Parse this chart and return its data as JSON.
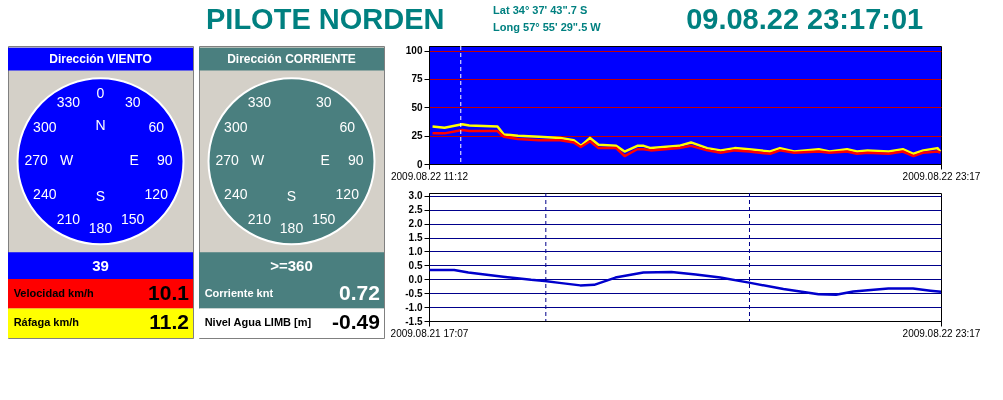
{
  "chart_data": [
    {
      "type": "other",
      "title": "PILOTE NORDEN",
      "annotations": [
        "Lat 34° 37' 43\".7 S",
        "Long 57° 55'  29\".5 W",
        "09.08.22 23:17:01"
      ]
    },
    {
      "type": "other",
      "title": "Dirección VIENTO",
      "color": "#0000ff",
      "categories": [
        "0",
        "30",
        "60",
        "90",
        "120",
        "150",
        "180",
        "210",
        "240",
        "270",
        "300",
        "330",
        "N",
        "E",
        "S",
        "W"
      ],
      "annotations": [
        "39",
        "Velocidad km/h",
        "10.1",
        "Ráfaga km/h",
        "11.2"
      ]
    },
    {
      "type": "other",
      "title": "Dirección CORRIENTE",
      "color": "#4a7f7f",
      "categories": [
        null,
        "30",
        "60",
        "90",
        "120",
        "150",
        "180",
        "210",
        "240",
        "270",
        "300",
        "330",
        null,
        "E",
        "S",
        "W"
      ],
      "annotations": [
        ">=360",
        "Corriente knt",
        "0.72",
        "Nivel Agua LIMB [m]",
        "-0.49"
      ]
    },
    {
      "type": "line",
      "x": [
        "2009-08-22T11:17",
        "2009-08-22T11:34",
        "2009-08-22T11:59",
        "2009-08-22T12:09",
        "2009-08-22T12:49",
        "2009-08-22T12:58",
        "2009-08-22T13:18",
        "2009-08-22T13:48",
        "2009-08-22T14:18",
        "2009-08-22T14:37",
        "2009-08-22T14:47",
        "2009-08-22T15:00",
        "2009-08-22T15:12",
        "2009-08-22T15:37",
        "2009-08-22T15:49",
        "2009-08-22T16:07",
        "2009-08-22T16:16",
        "2009-08-22T16:26",
        "2009-08-22T17:06",
        "2009-08-22T17:23",
        "2009-08-22T17:46",
        "2009-08-22T18:05",
        "2009-08-22T18:25",
        "2009-08-22T18:45",
        "2009-08-22T19:15",
        "2009-08-22T19:29",
        "2009-08-22T19:49",
        "2009-08-22T20:24",
        "2009-08-22T20:39",
        "2009-08-22T21:04",
        "2009-08-22T21:18",
        "2009-08-22T21:33",
        "2009-08-22T22:03",
        "2009-08-22T22:23",
        "2009-08-22T22:38",
        "2009-08-22T22:52",
        "2009-08-22T23:12",
        "2009-08-22T23:16"
      ],
      "series": [
        {
          "color": "#ffff00",
          "values": [
            33,
            32,
            35,
            34,
            33,
            26,
            25,
            24,
            23,
            21,
            16,
            23,
            17,
            16,
            11,
            16,
            16,
            14,
            16,
            19,
            14,
            12,
            14,
            13,
            11,
            14,
            11,
            13,
            11,
            13,
            11,
            12,
            11,
            13,
            9,
            12,
            14,
            11
          ]
        },
        {
          "color": "#ff0000",
          "values": [
            27,
            27,
            30,
            29,
            29,
            24,
            22,
            21,
            21,
            19,
            15,
            20,
            14,
            14,
            7,
            13,
            13,
            12,
            14,
            16,
            12,
            10,
            12,
            11,
            9,
            12,
            10,
            11,
            10,
            11,
            9,
            10,
            9,
            11,
            7,
            10,
            11,
            10
          ]
        }
      ],
      "xlim": [
        "2009-08-22T11:12",
        "2009-08-22T23:17"
      ],
      "xticks": [
        {
          "value": "2009-08-22T11:12",
          "label": "2009.08.22 11:12"
        },
        {
          "value": "2009-08-22T23:17",
          "label": "2009.08.22 23:17"
        }
      ],
      "ylim": [
        0,
        104
      ],
      "yticks": [
        0,
        25,
        50,
        75,
        100
      ],
      "grid": "y",
      "ref_lines": [
        {
          "axis": "x",
          "value": "2009-08-22T11:57",
          "color": "#ffffff",
          "line_style": "dashed"
        }
      ]
    },
    {
      "type": "line",
      "x": [
        "2009-08-21T17:09",
        "2009-08-21T18:36",
        "2009-08-21T19:26",
        "2009-08-21T21:29",
        "2009-08-21T23:08",
        "2009-08-21T23:56",
        "2009-08-22T00:48",
        "2009-08-22T02:02",
        "2009-08-22T02:51",
        "2009-08-22T04:06",
        "2009-08-22T05:45",
        "2009-08-22T07:24",
        "2009-08-22T08:50",
        "2009-08-22T10:17",
        "2009-08-22T12:03",
        "2009-08-22T14:00",
        "2009-08-22T16:04",
        "2009-08-22T17:06",
        "2009-08-22T18:07",
        "2009-08-22T20:11",
        "2009-08-22T21:38",
        "2009-08-22T22:40",
        "2009-08-22T23:17"
      ],
      "series": [
        {
          "color": "#0000cc",
          "values": [
            0.33,
            0.33,
            0.24,
            0.09,
            -0.02,
            -0.06,
            -0.13,
            -0.22,
            -0.2,
            0.06,
            0.24,
            0.26,
            0.17,
            0.06,
            -0.13,
            -0.35,
            -0.54,
            -0.56,
            -0.44,
            -0.33,
            -0.33,
            -0.41,
            -0.45
          ]
        }
      ],
      "xlim": [
        "2009-08-21T17:07",
        "2009-08-22T23:17"
      ],
      "xticks": [
        {
          "value": "2009-08-21T17:07",
          "label": "2009.08.21 17:07"
        },
        {
          "value": "2009-08-22T23:17",
          "label": "2009.08.22 23:17"
        }
      ],
      "ylim": [
        -1.5,
        3.1
      ],
      "yticks": [
        {
          "value": -1.5,
          "label": "-1.5"
        },
        {
          "value": -1.0,
          "label": "-1.0"
        },
        {
          "value": -0.5,
          "label": "-0.5"
        },
        {
          "value": 0.0,
          "label": "0.0"
        },
        {
          "value": 0.5,
          "label": "0.5"
        },
        {
          "value": 1.0,
          "label": "1.0"
        },
        {
          "value": 1.5,
          "label": "1.5"
        },
        {
          "value": 2.0,
          "label": "2.0"
        },
        {
          "value": 2.5,
          "label": "2.5"
        },
        {
          "value": 3.0,
          "label": "3.0"
        }
      ],
      "grid": "y",
      "ref_lines": [
        {
          "axis": "x",
          "value": "2009-08-22T00:00",
          "color": "#00008b",
          "line_style": "dashed"
        },
        {
          "axis": "x",
          "value": "2009-08-22T12:00",
          "color": "#00008b",
          "line_style": "dashed"
        }
      ]
    }
  ]
}
